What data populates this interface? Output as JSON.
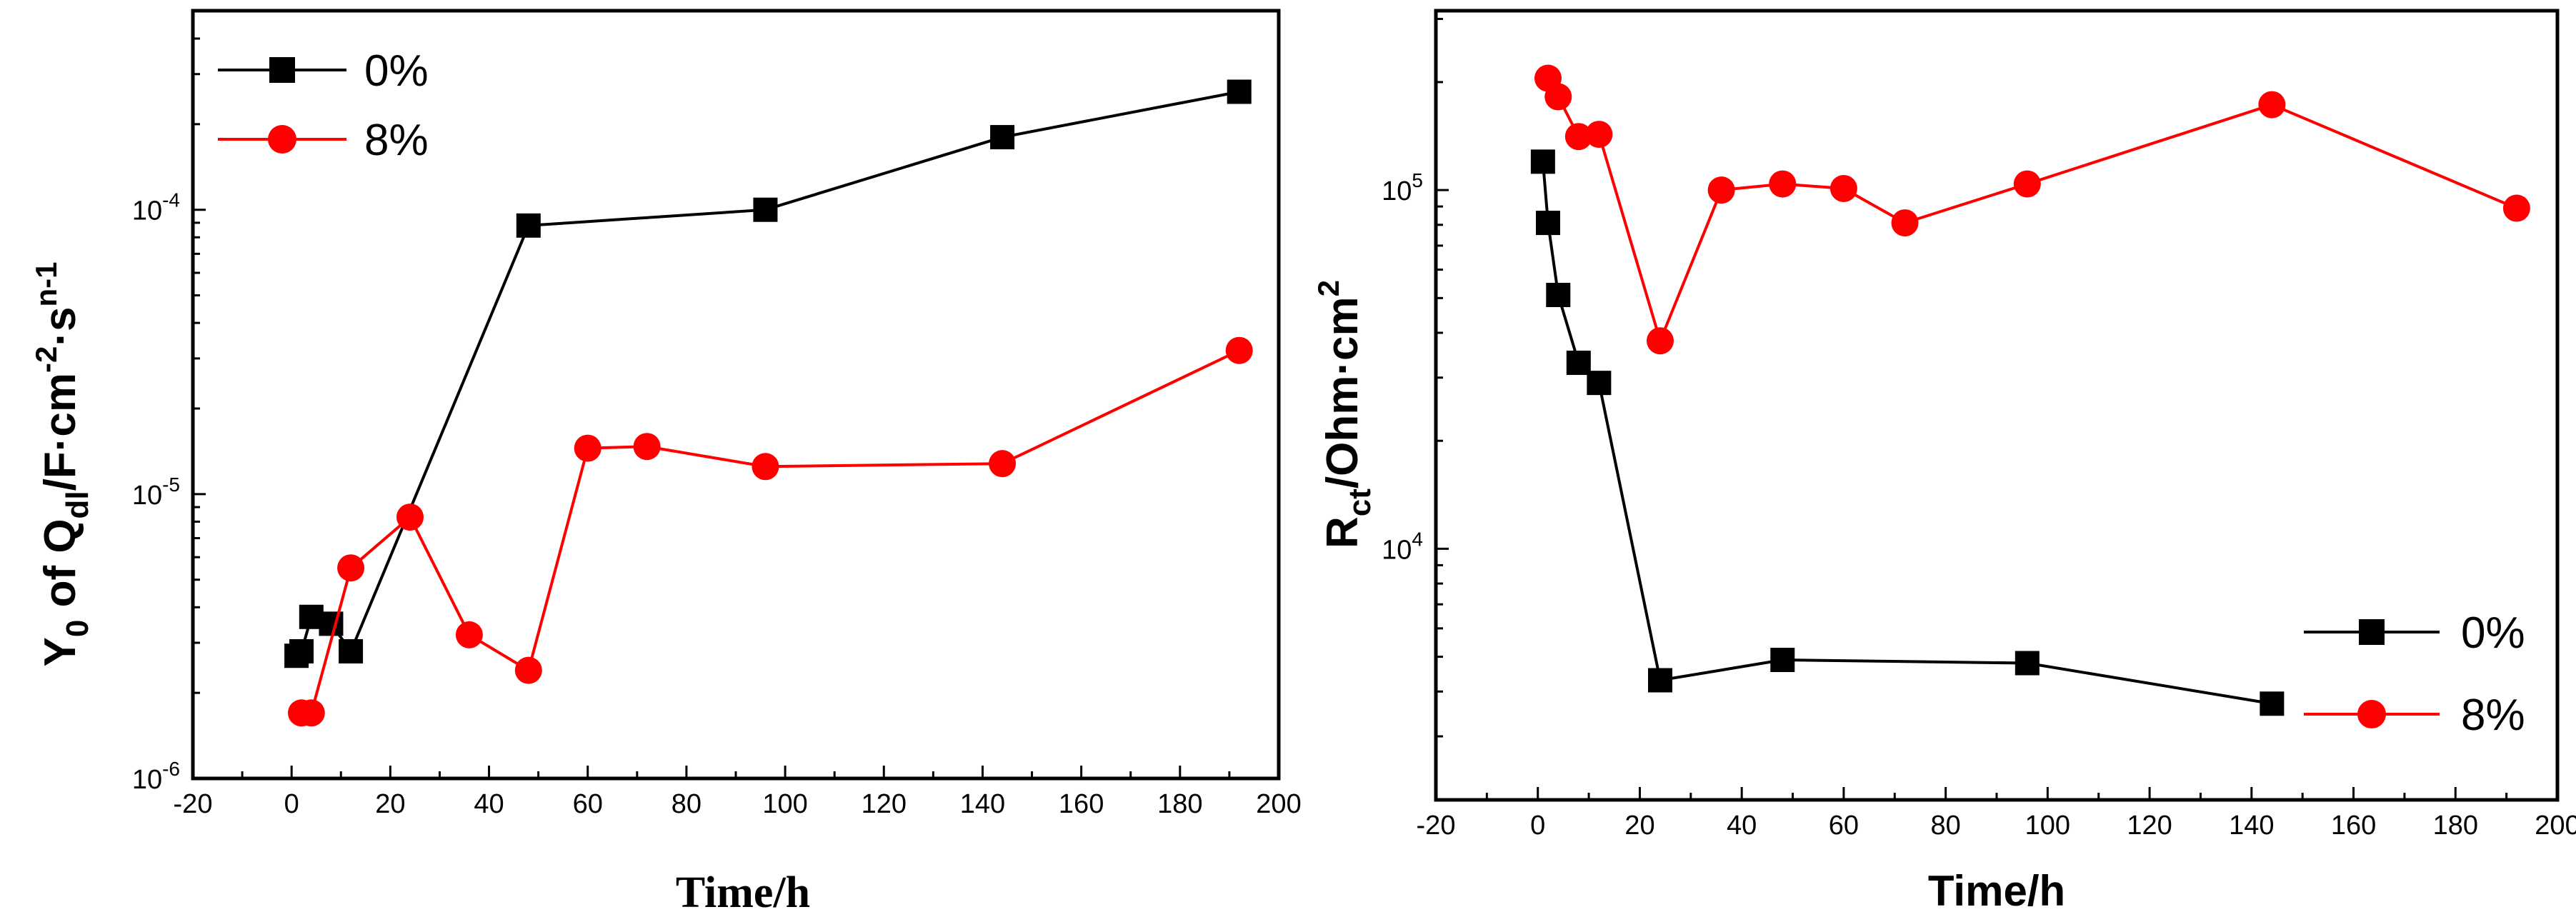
{
  "chart_data": [
    {
      "type": "line",
      "id": "left",
      "xlabel": "Time/h",
      "ylabel": {
        "main": "Y",
        "sub0": "0",
        "mid": " of Q",
        "sub1": "dl",
        "tail": "/F·cm",
        "sup1": "-2",
        "dot": "·s",
        "sup2": "n-1"
      },
      "y_scale": "log",
      "xlim": [
        -20,
        200
      ],
      "ylim_exp": [
        -6,
        -3.3
      ],
      "x_ticks": [
        -20,
        0,
        20,
        40,
        60,
        80,
        100,
        120,
        140,
        160,
        180,
        200
      ],
      "y_ticks": [
        {
          "value": -6,
          "base": "10",
          "exp": "-6"
        },
        {
          "value": -5,
          "base": "10",
          "exp": "-5"
        },
        {
          "value": -4,
          "base": "10",
          "exp": "-4"
        }
      ],
      "legend": "top-left",
      "series": [
        {
          "name": "0%",
          "color": "#000000",
          "marker": "square",
          "x": [
            1,
            2,
            4,
            8,
            12,
            48,
            96,
            144,
            192
          ],
          "y": [
            2.7e-06,
            2.8e-06,
            3.7e-06,
            3.5e-06,
            2.8e-06,
            8.8e-05,
            0.0001,
            0.00018,
            0.00026
          ]
        },
        {
          "name": "8%",
          "color": "#ff0000",
          "marker": "circle",
          "x": [
            2,
            4,
            12,
            24,
            36,
            48,
            60,
            72,
            96,
            144,
            192
          ],
          "y": [
            1.7e-06,
            1.7e-06,
            5.5e-06,
            8.3e-06,
            3.2e-06,
            2.4e-06,
            1.45e-05,
            1.47e-05,
            1.25e-05,
            1.28e-05,
            3.2e-05
          ]
        }
      ]
    },
    {
      "type": "line",
      "id": "right",
      "xlabel": "Time/h",
      "ylabel": {
        "main": "R",
        "sub0": "ct",
        "tail": "/Ohm·cm",
        "sup1": "2"
      },
      "y_scale": "log",
      "xlim": [
        -20,
        200
      ],
      "ylim_exp": [
        3.3,
        5.5
      ],
      "x_ticks": [
        -20,
        0,
        20,
        40,
        60,
        80,
        100,
        120,
        140,
        160,
        180,
        200
      ],
      "y_ticks": [
        {
          "value": 4,
          "base": "10",
          "exp": "4"
        },
        {
          "value": 5,
          "base": "10",
          "exp": "5"
        }
      ],
      "legend": "bottom-right",
      "series": [
        {
          "name": "0%",
          "color": "#000000",
          "marker": "square",
          "x": [
            1,
            2,
            4,
            8,
            12,
            24,
            48,
            96,
            144
          ],
          "y": [
            120000,
            81000,
            51000,
            33000,
            29000,
            4300,
            4900,
            4800,
            3700
          ]
        },
        {
          "name": "8%",
          "color": "#ff0000",
          "marker": "circle",
          "x": [
            2,
            4,
            8,
            12,
            24,
            36,
            48,
            60,
            72,
            96,
            144,
            192
          ],
          "y": [
            205000,
            182000,
            141000,
            143000,
            38000,
            100000,
            104000,
            101000,
            81000,
            104000,
            173000,
            89000
          ]
        }
      ]
    }
  ]
}
